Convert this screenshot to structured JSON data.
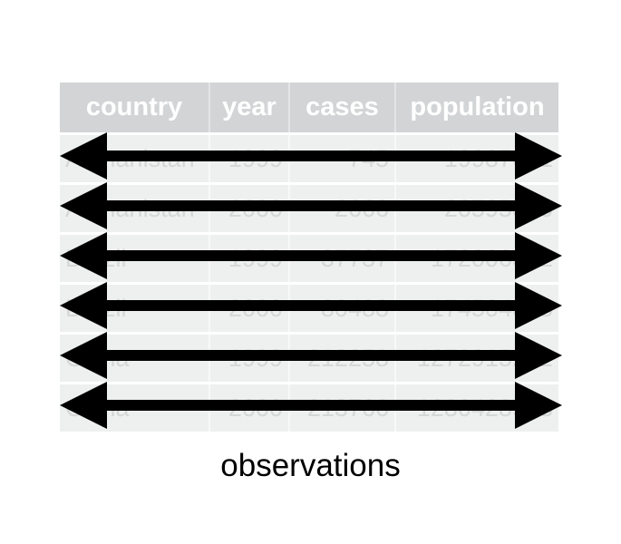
{
  "table": {
    "headers": [
      "country",
      "year",
      "cases",
      "population"
    ],
    "rows": [
      [
        "Afghanistan",
        "1999",
        "745",
        "19987071"
      ],
      [
        "Afghanistan",
        "2000",
        "2666",
        "20595360"
      ],
      [
        "Brazil",
        "1999",
        "37737",
        "172006362"
      ],
      [
        "Brazil",
        "2000",
        "80488",
        "174504898"
      ],
      [
        "China",
        "1999",
        "212258",
        "1272915272"
      ],
      [
        "China",
        "2000",
        "213766",
        "1280428583"
      ]
    ]
  },
  "caption": "observations",
  "colors": {
    "header_bg": "#d3d4d5",
    "cell_bg": "#eef0ef",
    "arrow": "#000000"
  },
  "icons": {
    "row_arrow": "double-headed-arrow-icon"
  }
}
